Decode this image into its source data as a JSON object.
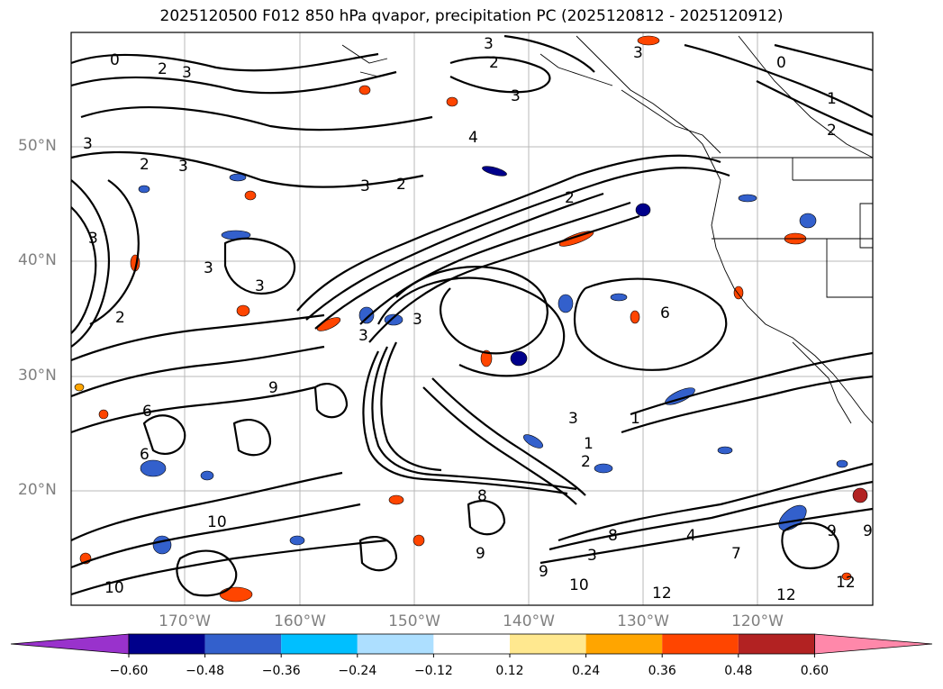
{
  "title": "2025120500 F012 850 hPa qvapor, precipitation PC (2025120812 - 2025120912)",
  "lat_labels": [
    "50°N",
    "40°N",
    "30°N",
    "20°N"
  ],
  "lon_labels": [
    "170°W",
    "160°W",
    "150°W",
    "140°W",
    "130°W",
    "120°W"
  ],
  "colorbar": {
    "colors": [
      "#9932CC",
      "#00008B",
      "#3360CC",
      "#00BFFF",
      "#ADDFFF",
      "#FFFFFF",
      "#FFE88F",
      "#FFA500",
      "#FF4500",
      "#B22222",
      "#FF88AA"
    ],
    "tick_labels": [
      "−0.60",
      "−0.48",
      "−0.36",
      "−0.24",
      "−0.12",
      "0.12",
      "0.24",
      "0.36",
      "0.48",
      "0.60"
    ]
  },
  "contour_labels": [
    "0",
    "2",
    "3",
    "3",
    "2",
    "3",
    "4",
    "3",
    "2",
    "3",
    "1",
    "2",
    "0",
    "1",
    "2",
    "3",
    "3",
    "2",
    "3",
    "3",
    "2",
    "3",
    "3",
    "6",
    "3",
    "1",
    "2",
    "9",
    "6",
    "8",
    "3",
    "10",
    "9",
    "8",
    "9",
    "3",
    "12",
    "12",
    "9",
    "12",
    "10",
    "10",
    "4",
    "7",
    "9",
    "6"
  ],
  "colors": {
    "coast": "#000000",
    "grid": "#b0b0b0",
    "contour": "#000000"
  }
}
